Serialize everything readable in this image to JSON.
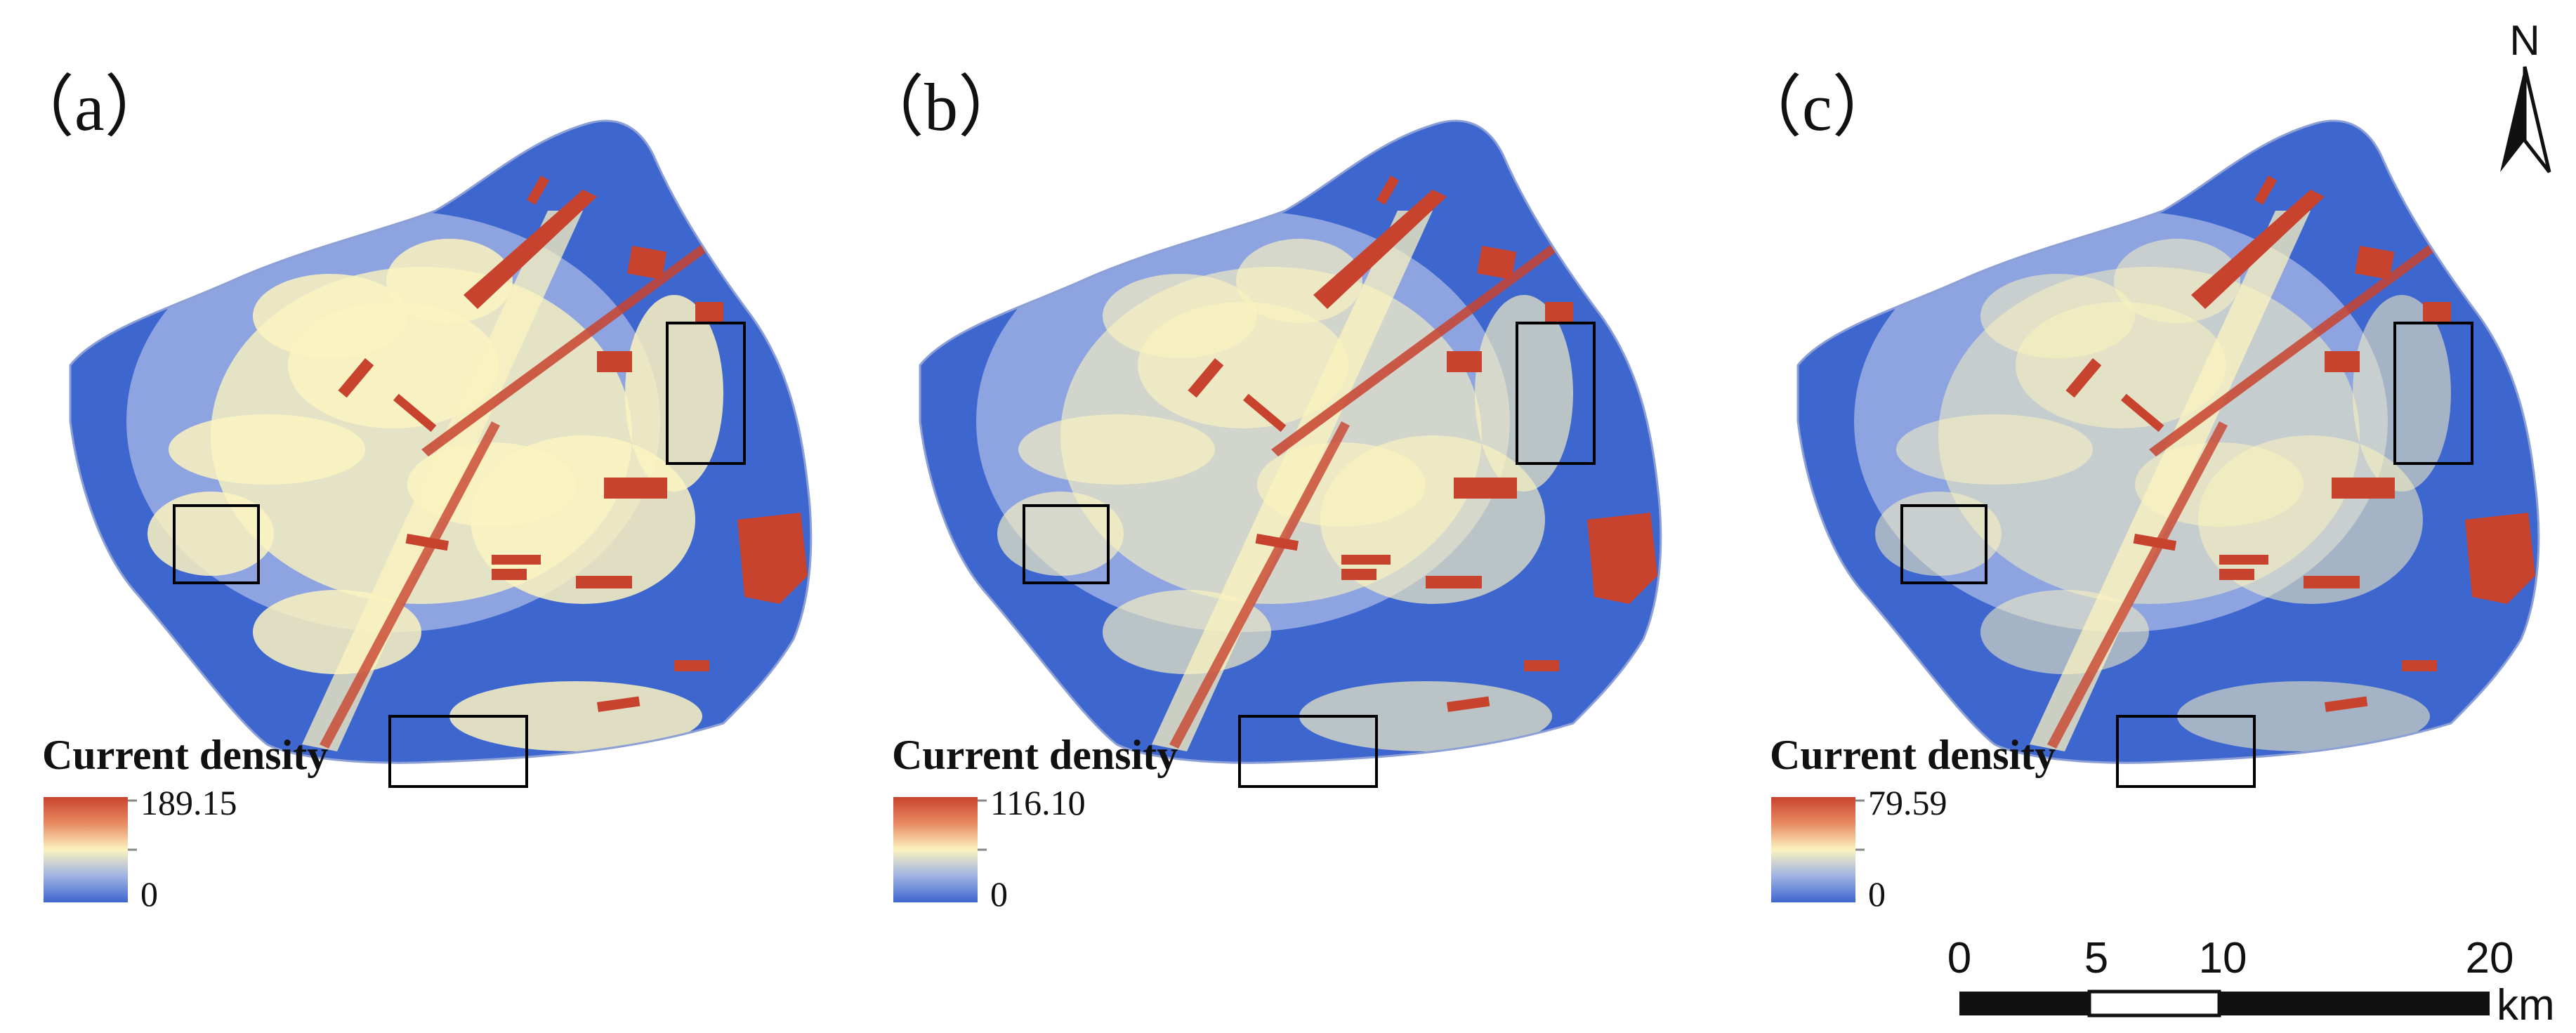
{
  "panels": [
    {
      "id": "a",
      "label": "（a）",
      "legend": {
        "title": "Current density",
        "max": "189.15",
        "min": "0"
      },
      "warmth": 1.0
    },
    {
      "id": "b",
      "label": "（b）",
      "legend": {
        "title": "Current density",
        "max": "116.10",
        "min": "0"
      },
      "warmth": 0.62
    },
    {
      "id": "c",
      "label": "（c）",
      "legend": {
        "title": "Current density",
        "max": "79.59",
        "min": "0"
      },
      "warmth": 0.38
    }
  ],
  "colormap": {
    "high": "#c8432e",
    "mid": "#fbf3bf",
    "low": "#3e66cf"
  },
  "north_arrow": {
    "label": "N",
    "icon": "north-arrow-icon"
  },
  "scale_bar": {
    "ticks": [
      "0",
      "5",
      "10",
      "20"
    ],
    "unit": "km"
  }
}
